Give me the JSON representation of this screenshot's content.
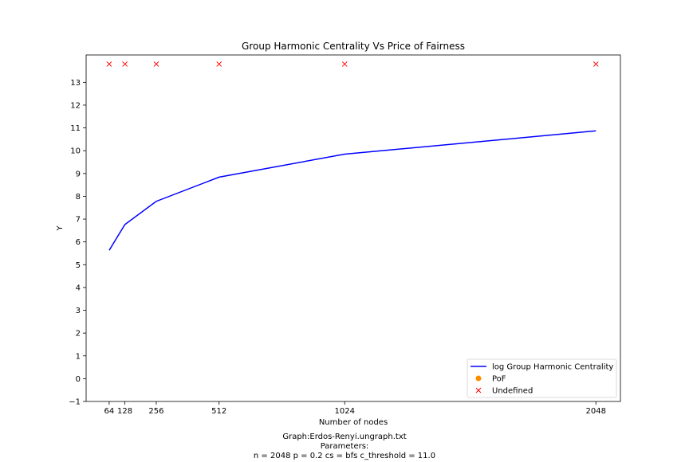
{
  "chart_data": {
    "type": "line",
    "title": "Group Harmonic Centrality Vs Price of Fairness",
    "xlabel": "Number of nodes",
    "ylabel": "Y",
    "x_ticks": [
      64,
      128,
      256,
      512,
      1024,
      2048
    ],
    "y_ticks": [
      -1,
      0,
      1,
      2,
      3,
      4,
      5,
      6,
      7,
      8,
      9,
      10,
      11,
      12,
      13
    ],
    "y_tick_labels": [
      "−1",
      "0",
      "1",
      "2",
      "3",
      "4",
      "5",
      "6",
      "7",
      "8",
      "9",
      "10",
      "11",
      "12",
      "13"
    ],
    "xlim": [
      -30,
      2148
    ],
    "ylim": [
      -1,
      14.2
    ],
    "grid": false,
    "legend_position": "lower-right",
    "series": [
      {
        "name": "log Group Harmonic Centrality",
        "kind": "line",
        "color": "#0000ff",
        "x": [
          64,
          128,
          256,
          512,
          1024,
          2048
        ],
        "y": [
          5.63,
          6.76,
          7.78,
          8.84,
          9.85,
          10.87
        ]
      },
      {
        "name": "PoF",
        "kind": "marker",
        "marker": "circle",
        "color": "#ff8c00",
        "x": [],
        "y": []
      },
      {
        "name": "Undefined",
        "kind": "marker",
        "marker": "x",
        "color": "#ff0000",
        "x": [
          64,
          128,
          256,
          512,
          1024,
          2048
        ],
        "y": [
          13.8,
          13.8,
          13.8,
          13.8,
          13.8,
          13.8
        ]
      }
    ]
  },
  "caption": {
    "graph": "Graph:Erdos-Renyi.ungraph.txt",
    "params_label": "Parameters:",
    "params": "n = 2048  p = 0.2  cs  = bfs  c_threshold = 11.0"
  }
}
